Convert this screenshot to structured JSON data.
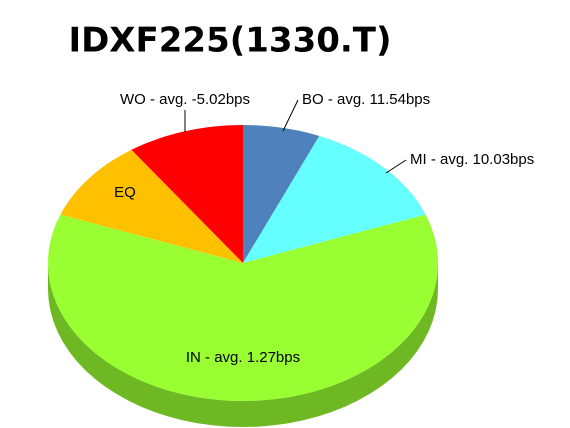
{
  "chart_data": {
    "type": "pie",
    "title": "IDXF225(1330.T)",
    "categories": [
      "BO - avg. 11.54bps",
      "MI - avg. 10.03bps",
      "IN - avg. 1.27bps",
      "EQ",
      "WO - avg. -5.02bps"
    ],
    "values": [
      6.4,
      12.9,
      61.4,
      9.6,
      9.7
    ],
    "colors": [
      "#4f81bd",
      "#66ffff",
      "#99ff33",
      "#ffc000",
      "#ff0000"
    ]
  }
}
